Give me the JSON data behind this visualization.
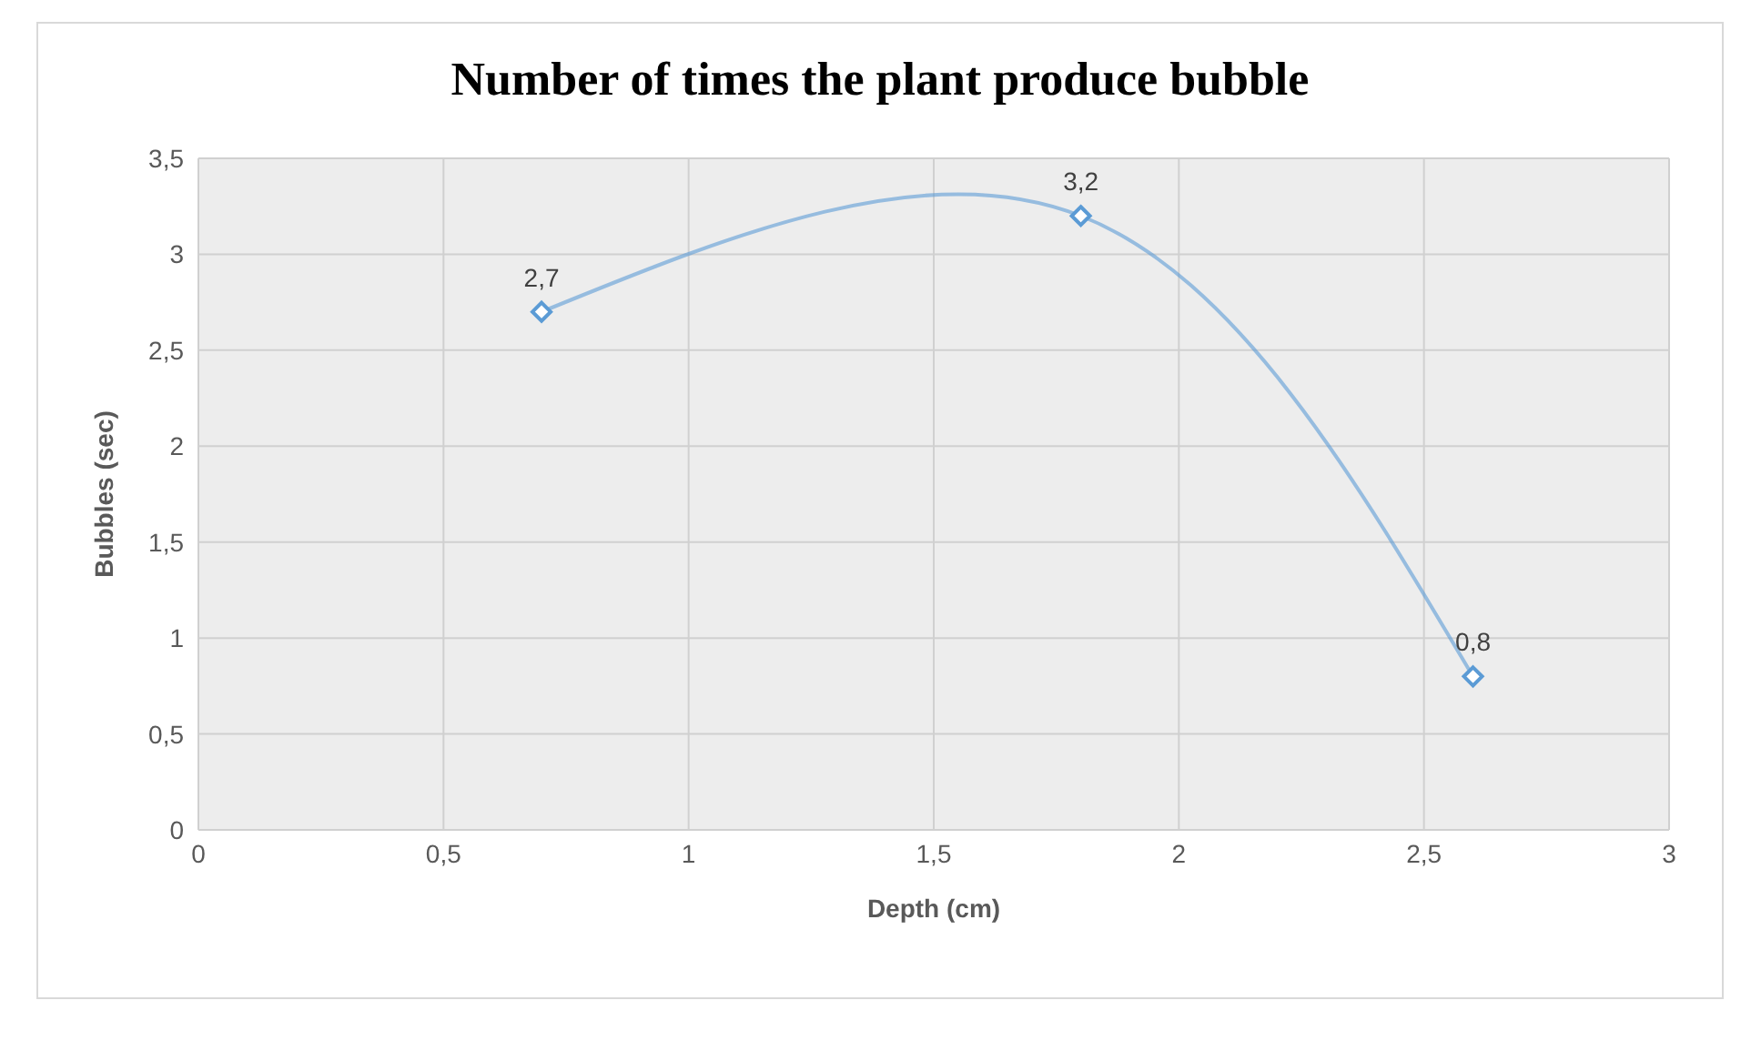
{
  "chart_data": {
    "type": "line",
    "title": "Number of times the plant produce bubble",
    "xlabel": "Depth (cm)",
    "ylabel": "Bubbles (sec)",
    "x": [
      0.7,
      1.8,
      2.6
    ],
    "series": [
      {
        "color": "#5b9bd5",
        "values": [
          2.7,
          3.2,
          0.8
        ],
        "value_labels": [
          "2,7",
          "3,2",
          "0,8"
        ]
      }
    ],
    "xlim": [
      0,
      3
    ],
    "xticks": [
      0,
      {
        "value": 0.5,
        "label": "0,5"
      },
      1,
      {
        "value": 1.5,
        "label": "1,5"
      },
      2,
      {
        "value": 2.5,
        "label": "2,5"
      },
      3
    ],
    "ylim": [
      0,
      3.5
    ],
    "yticks": [
      0,
      {
        "value": 0.5,
        "label": "0,5"
      },
      1,
      {
        "value": 1.5,
        "label": "1,5"
      },
      2,
      {
        "value": 2.5,
        "label": "2,5"
      },
      3,
      {
        "value": 3.5,
        "label": "3,5"
      }
    ],
    "grid": true,
    "marker": "diamond",
    "line_style": "solid"
  }
}
